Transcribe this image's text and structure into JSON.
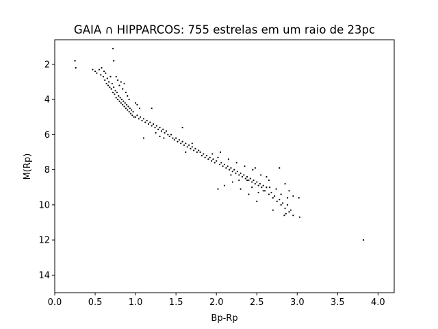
{
  "chart_data": {
    "type": "scatter",
    "title": "GAIA ∩ HIPPARCOS: 755 estrelas em um raio de 23pc",
    "xlabel": "Bp-Rp",
    "ylabel": "M(Rp)",
    "xlim": [
      0.0,
      4.2
    ],
    "ylim": [
      15.0,
      0.6
    ],
    "y_inverted": true,
    "grid": false,
    "point_color": "#000000",
    "x_ticks": [
      0.0,
      0.5,
      1.0,
      1.5,
      2.0,
      2.5,
      3.0,
      3.5,
      4.0
    ],
    "x_tick_labels": [
      "0.0",
      "0.5",
      "1.0",
      "1.5",
      "2.0",
      "2.5",
      "3.0",
      "3.5",
      "4.0"
    ],
    "y_ticks": [
      2,
      4,
      6,
      8,
      10,
      12,
      14
    ],
    "y_tick_labels": [
      "2",
      "4",
      "6",
      "8",
      "10",
      "12",
      "14"
    ],
    "series": [
      {
        "points": [
          [
            0.25,
            1.8
          ],
          [
            0.26,
            2.2
          ],
          [
            0.72,
            1.1
          ],
          [
            0.73,
            1.8
          ],
          [
            3.82,
            12.0
          ],
          [
            0.47,
            2.3
          ],
          [
            0.5,
            2.4
          ],
          [
            0.52,
            2.5
          ],
          [
            0.55,
            2.3
          ],
          [
            0.57,
            2.6
          ],
          [
            0.58,
            2.2
          ],
          [
            0.6,
            2.7
          ],
          [
            0.61,
            2.4
          ],
          [
            0.62,
            2.9
          ],
          [
            0.63,
            2.5
          ],
          [
            0.64,
            3.1
          ],
          [
            0.65,
            2.8
          ],
          [
            0.66,
            3.2
          ],
          [
            0.67,
            3.0
          ],
          [
            0.68,
            3.3
          ],
          [
            0.69,
            2.7
          ],
          [
            0.7,
            3.4
          ],
          [
            0.71,
            3.1
          ],
          [
            0.72,
            3.6
          ],
          [
            0.73,
            3.3
          ],
          [
            0.74,
            3.7
          ],
          [
            0.75,
            3.5
          ],
          [
            0.76,
            3.9
          ],
          [
            0.77,
            3.6
          ],
          [
            0.78,
            4.0
          ],
          [
            0.79,
            3.8
          ],
          [
            0.8,
            4.1
          ],
          [
            0.81,
            3.9
          ],
          [
            0.82,
            4.2
          ],
          [
            0.83,
            4.0
          ],
          [
            0.84,
            4.3
          ],
          [
            0.85,
            4.1
          ],
          [
            0.86,
            4.4
          ],
          [
            0.87,
            4.2
          ],
          [
            0.88,
            4.5
          ],
          [
            0.89,
            4.3
          ],
          [
            0.9,
            4.6
          ],
          [
            0.91,
            4.4
          ],
          [
            0.92,
            4.7
          ],
          [
            0.93,
            4.5
          ],
          [
            0.94,
            4.8
          ],
          [
            0.95,
            4.6
          ],
          [
            0.96,
            4.9
          ],
          [
            0.97,
            4.7
          ],
          [
            0.98,
            5.0
          ],
          [
            0.8,
            3.2
          ],
          [
            0.82,
            3.0
          ],
          [
            0.78,
            2.9
          ],
          [
            0.84,
            3.4
          ],
          [
            0.86,
            3.1
          ],
          [
            0.88,
            3.6
          ],
          [
            0.76,
            2.7
          ],
          [
            0.9,
            3.8
          ],
          [
            0.92,
            4.0
          ],
          [
            1.0,
            4.2
          ],
          [
            1.02,
            4.3
          ],
          [
            1.05,
            4.5
          ],
          [
            1.0,
            5.0
          ],
          [
            1.02,
            4.9
          ],
          [
            1.04,
            5.1
          ],
          [
            1.06,
            5.0
          ],
          [
            1.08,
            5.2
          ],
          [
            1.1,
            5.1
          ],
          [
            1.12,
            5.3
          ],
          [
            1.14,
            5.2
          ],
          [
            1.16,
            5.4
          ],
          [
            1.18,
            5.3
          ],
          [
            1.2,
            5.5
          ],
          [
            1.22,
            5.4
          ],
          [
            1.24,
            5.6
          ],
          [
            1.26,
            5.5
          ],
          [
            1.28,
            5.7
          ],
          [
            1.3,
            5.6
          ],
          [
            1.32,
            5.8
          ],
          [
            1.34,
            5.7
          ],
          [
            1.36,
            5.9
          ],
          [
            1.38,
            5.8
          ],
          [
            1.4,
            6.0
          ],
          [
            1.42,
            6.1
          ],
          [
            1.44,
            6.0
          ],
          [
            1.2,
            4.5
          ],
          [
            1.1,
            6.2
          ],
          [
            1.35,
            6.2
          ],
          [
            1.3,
            6.1
          ],
          [
            1.25,
            5.9
          ],
          [
            1.46,
            6.2
          ],
          [
            1.48,
            6.3
          ],
          [
            1.5,
            6.2
          ],
          [
            1.52,
            6.4
          ],
          [
            1.54,
            6.3
          ],
          [
            1.56,
            6.5
          ],
          [
            1.58,
            6.4
          ],
          [
            1.6,
            6.6
          ],
          [
            1.62,
            6.5
          ],
          [
            1.64,
            6.7
          ],
          [
            1.66,
            6.6
          ],
          [
            1.68,
            6.8
          ],
          [
            1.7,
            6.7
          ],
          [
            1.72,
            6.9
          ],
          [
            1.74,
            6.8
          ],
          [
            1.76,
            7.0
          ],
          [
            1.58,
            5.6
          ],
          [
            1.62,
            7.0
          ],
          [
            1.7,
            6.5
          ],
          [
            1.78,
            6.9
          ],
          [
            1.8,
            7.0
          ],
          [
            1.82,
            7.2
          ],
          [
            1.84,
            7.1
          ],
          [
            1.86,
            7.3
          ],
          [
            1.88,
            7.2
          ],
          [
            1.9,
            7.4
          ],
          [
            1.92,
            7.3
          ],
          [
            1.94,
            7.5
          ],
          [
            1.96,
            7.4
          ],
          [
            1.98,
            7.6
          ],
          [
            2.0,
            7.5
          ],
          [
            2.02,
            7.3
          ],
          [
            2.04,
            7.7
          ],
          [
            2.06,
            7.6
          ],
          [
            2.08,
            7.8
          ],
          [
            2.1,
            7.7
          ],
          [
            2.12,
            7.9
          ],
          [
            2.14,
            7.8
          ],
          [
            2.16,
            8.0
          ],
          [
            2.18,
            7.9
          ],
          [
            2.2,
            8.1
          ],
          [
            2.22,
            8.0
          ],
          [
            2.24,
            8.2
          ],
          [
            2.26,
            8.1
          ],
          [
            2.28,
            8.3
          ],
          [
            2.3,
            8.2
          ],
          [
            2.32,
            8.4
          ],
          [
            2.34,
            8.3
          ],
          [
            2.36,
            8.5
          ],
          [
            2.38,
            8.4
          ],
          [
            2.4,
            8.6
          ],
          [
            2.42,
            8.5
          ],
          [
            2.44,
            8.7
          ],
          [
            2.46,
            8.6
          ],
          [
            2.48,
            8.8
          ],
          [
            2.5,
            8.7
          ],
          [
            2.52,
            8.9
          ],
          [
            2.54,
            8.8
          ],
          [
            2.56,
            9.0
          ],
          [
            2.58,
            8.9
          ],
          [
            2.6,
            9.2
          ],
          [
            2.62,
            9.0
          ],
          [
            2.65,
            9.4
          ],
          [
            2.68,
            9.3
          ],
          [
            2.7,
            9.6
          ],
          [
            2.72,
            9.5
          ],
          [
            2.75,
            9.8
          ],
          [
            2.78,
            9.7
          ],
          [
            2.8,
            10.0
          ],
          [
            2.82,
            9.9
          ],
          [
            2.85,
            10.2
          ],
          [
            2.88,
            10.0
          ],
          [
            2.9,
            10.4
          ],
          [
            2.92,
            10.3
          ],
          [
            2.95,
            10.6
          ],
          [
            3.02,
            9.6
          ],
          [
            3.03,
            10.7
          ],
          [
            2.84,
            10.6
          ],
          [
            2.86,
            10.5
          ],
          [
            2.02,
            9.1
          ],
          [
            2.1,
            8.9
          ],
          [
            2.2,
            8.7
          ],
          [
            2.3,
            9.1
          ],
          [
            2.4,
            9.4
          ],
          [
            2.5,
            9.8
          ],
          [
            2.7,
            10.3
          ],
          [
            2.78,
            7.9
          ],
          [
            2.85,
            8.8
          ],
          [
            2.9,
            9.2
          ],
          [
            2.95,
            9.5
          ],
          [
            2.15,
            7.4
          ],
          [
            2.25,
            7.6
          ],
          [
            2.35,
            7.8
          ],
          [
            2.45,
            8.0
          ],
          [
            2.55,
            8.3
          ],
          [
            2.65,
            8.6
          ],
          [
            2.48,
            7.9
          ],
          [
            2.38,
            8.6
          ],
          [
            2.58,
            9.2
          ],
          [
            2.62,
            8.4
          ],
          [
            2.05,
            7.0
          ],
          [
            1.95,
            7.1
          ],
          [
            2.18,
            8.3
          ],
          [
            2.28,
            8.6
          ],
          [
            2.44,
            9.0
          ],
          [
            2.52,
            9.3
          ],
          [
            2.66,
            9.0
          ],
          [
            2.74,
            9.1
          ],
          [
            2.8,
            9.4
          ],
          [
            2.88,
            9.6
          ]
        ]
      }
    ]
  }
}
